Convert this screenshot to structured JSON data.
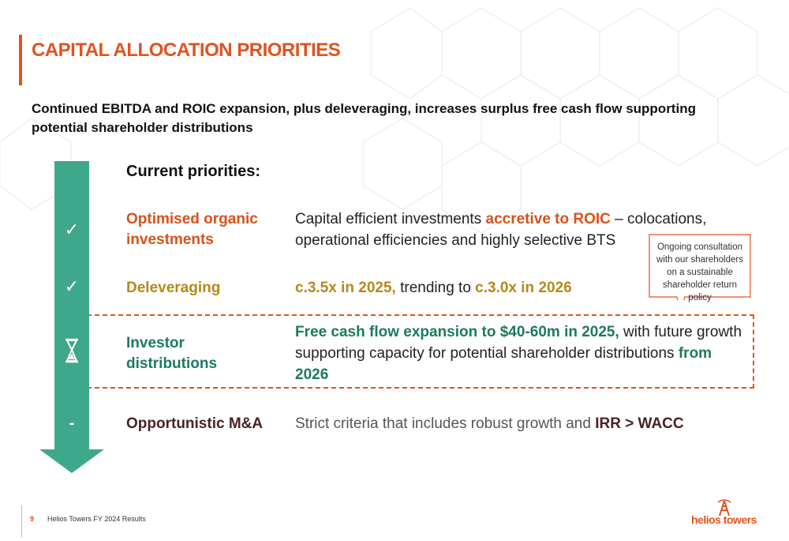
{
  "header": {
    "title": "CAPITAL ALLOCATION PRIORITIES"
  },
  "subtitle": "Continued EBITDA and ROIC expansion, plus deleveraging, increases surplus free cash flow supporting potential shareholder distributions",
  "section_heading": "Current priorities:",
  "colors": {
    "accent_orange": "#e0531f",
    "arrow_green": "#3fa88a",
    "gold": "#b5891a",
    "teal": "#1c7a62",
    "plum": "#4a2323"
  },
  "priorities": [
    {
      "status_icon": "checkmark-icon",
      "status_glyph": "✓",
      "label": "Optimised organic investments",
      "desc_pre": "Capital efficient investments ",
      "desc_bold": "accretive to ROIC",
      "desc_post": " – colocations, operational efficiencies and highly selective BTS"
    },
    {
      "status_icon": "checkmark-icon",
      "status_glyph": "✓",
      "label": "Deleveraging",
      "desc_bold1": "c.3.5x in 2025,",
      "desc_mid": " trending to ",
      "desc_bold2": "c.3.0x in 2026"
    },
    {
      "status_icon": "hourglass-icon",
      "label": "Investor distributions",
      "desc_bold1": "Free cash flow expansion to $40-60m in 2025,",
      "desc_mid": " with future growth supporting capacity for potential shareholder distributions ",
      "desc_bold2": "from 2026"
    },
    {
      "status_icon": "dash-icon",
      "status_glyph": "-",
      "label": "Opportunistic M&A",
      "desc_pre": "Strict criteria that includes robust growth and ",
      "desc_bold": "IRR > WACC"
    }
  ],
  "callout": "Ongoing consultation with our shareholders on a sustainable shareholder return policy",
  "footer": {
    "page_number": "9",
    "text": "Helios Towers FY 2024 Results"
  },
  "logo": {
    "text": "helios towers",
    "icon": "tower-icon"
  }
}
